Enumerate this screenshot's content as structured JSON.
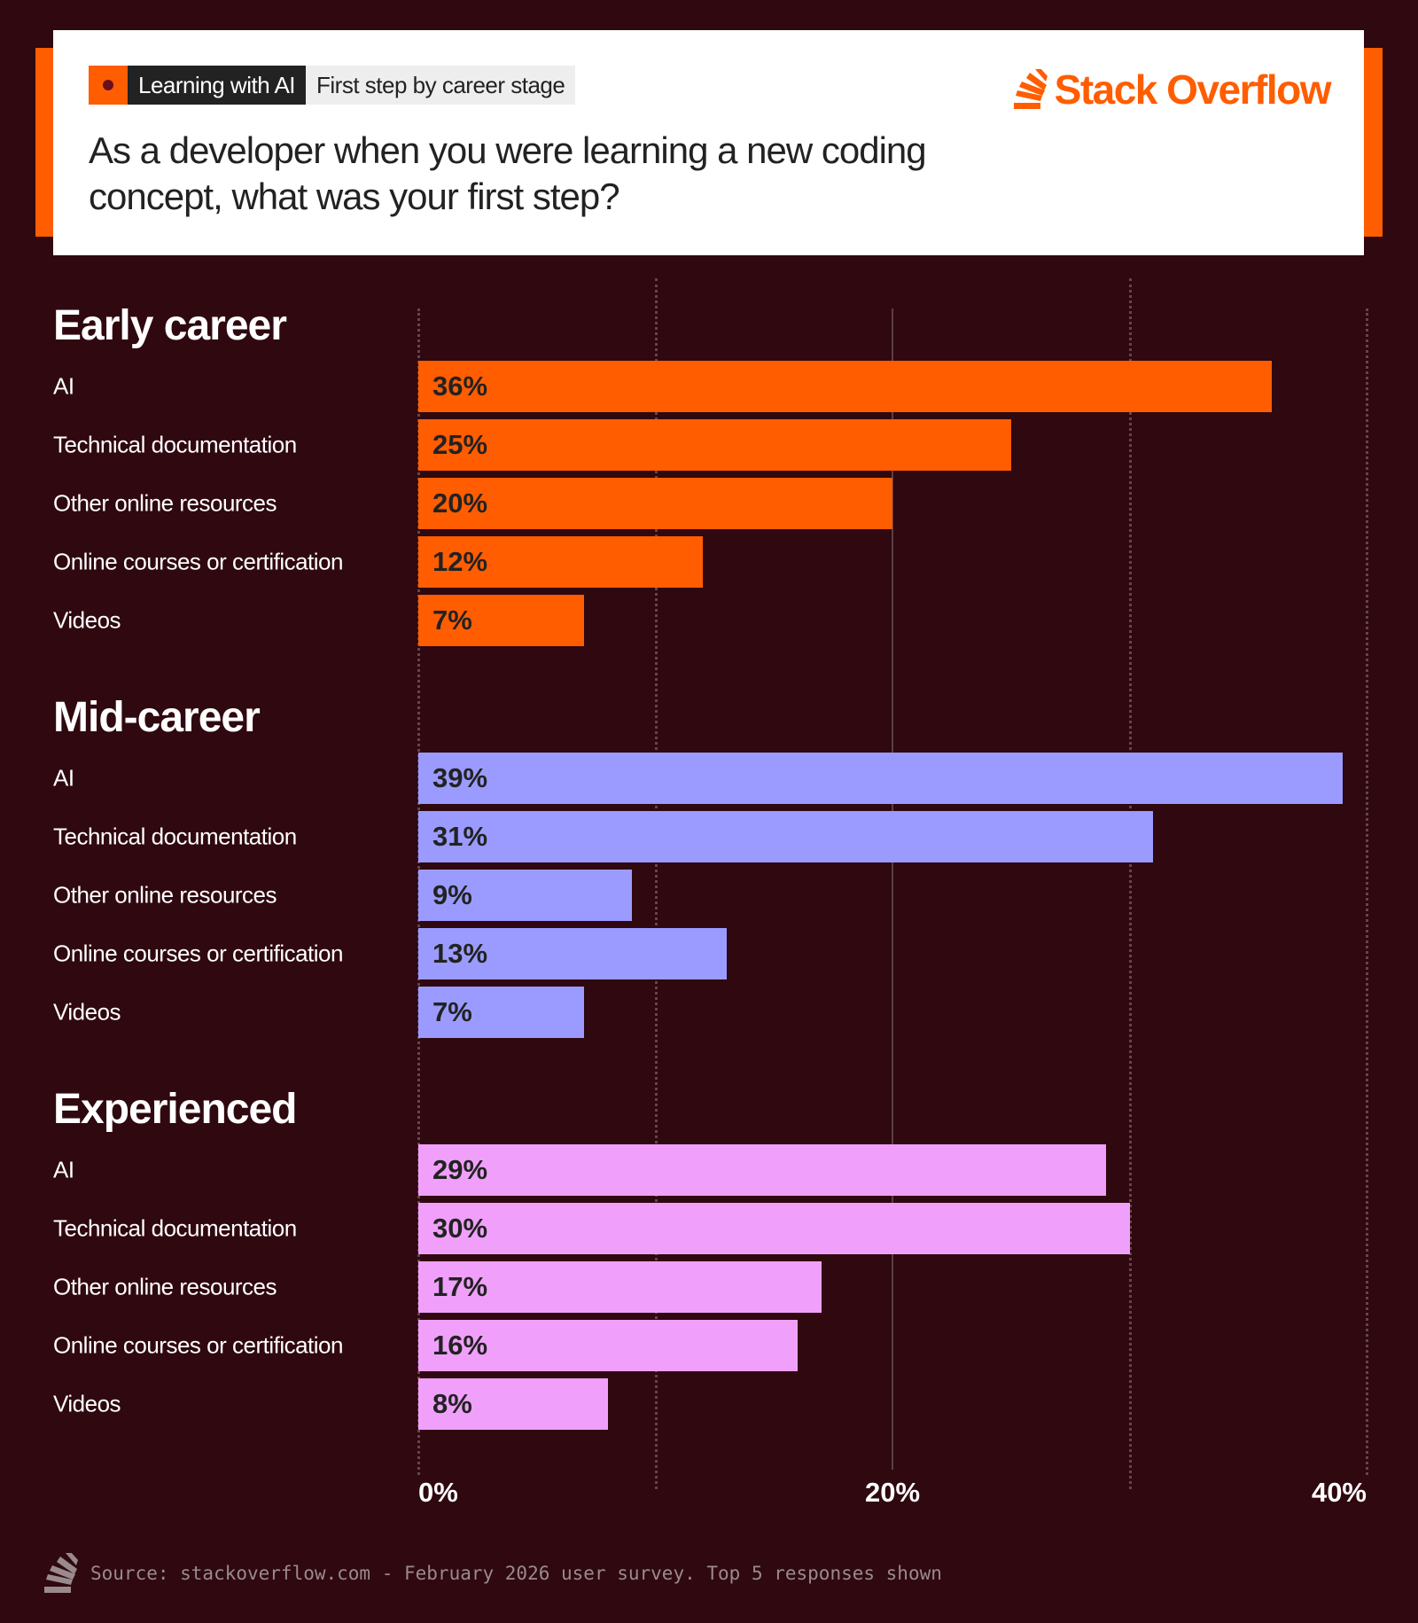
{
  "header": {
    "tag_primary": "Learning with AI",
    "tag_secondary": "First step by career stage",
    "logo_text": "Stack Overflow",
    "question": "As a developer when you were learning a new coding concept, what was your first step?"
  },
  "footer": {
    "source": "Source: stackoverflow.com - February 2026 user survey. Top 5 responses shown"
  },
  "colors": {
    "background": "#2f0810",
    "accent": "#ff5d00",
    "early_career": "#ff5d00",
    "mid_career": "#9b9bff",
    "experienced": "#f0a0fa"
  },
  "chart_data": {
    "type": "bar",
    "orientation": "horizontal",
    "xlim": [
      0,
      40
    ],
    "x_ticks": [
      "0%",
      "20%",
      "40%"
    ],
    "grid": true,
    "categories": [
      "AI",
      "Technical documentation",
      "Other online resources",
      "Online courses or certification",
      "Videos"
    ],
    "groups": [
      {
        "name": "Early career",
        "color": "#ff5d00",
        "values": [
          36,
          25,
          20,
          12,
          7
        ],
        "labels": [
          "36%",
          "25%",
          "20%",
          "12%",
          "7%"
        ]
      },
      {
        "name": "Mid-career",
        "color": "#9b9bff",
        "values": [
          39,
          31,
          9,
          13,
          7
        ],
        "labels": [
          "39%",
          "31%",
          "9%",
          "13%",
          "7%"
        ]
      },
      {
        "name": "Experienced",
        "color": "#f0a0fa",
        "values": [
          29,
          30,
          17,
          16,
          8
        ],
        "labels": [
          "29%",
          "30%",
          "17%",
          "16%",
          "8%"
        ]
      }
    ]
  }
}
